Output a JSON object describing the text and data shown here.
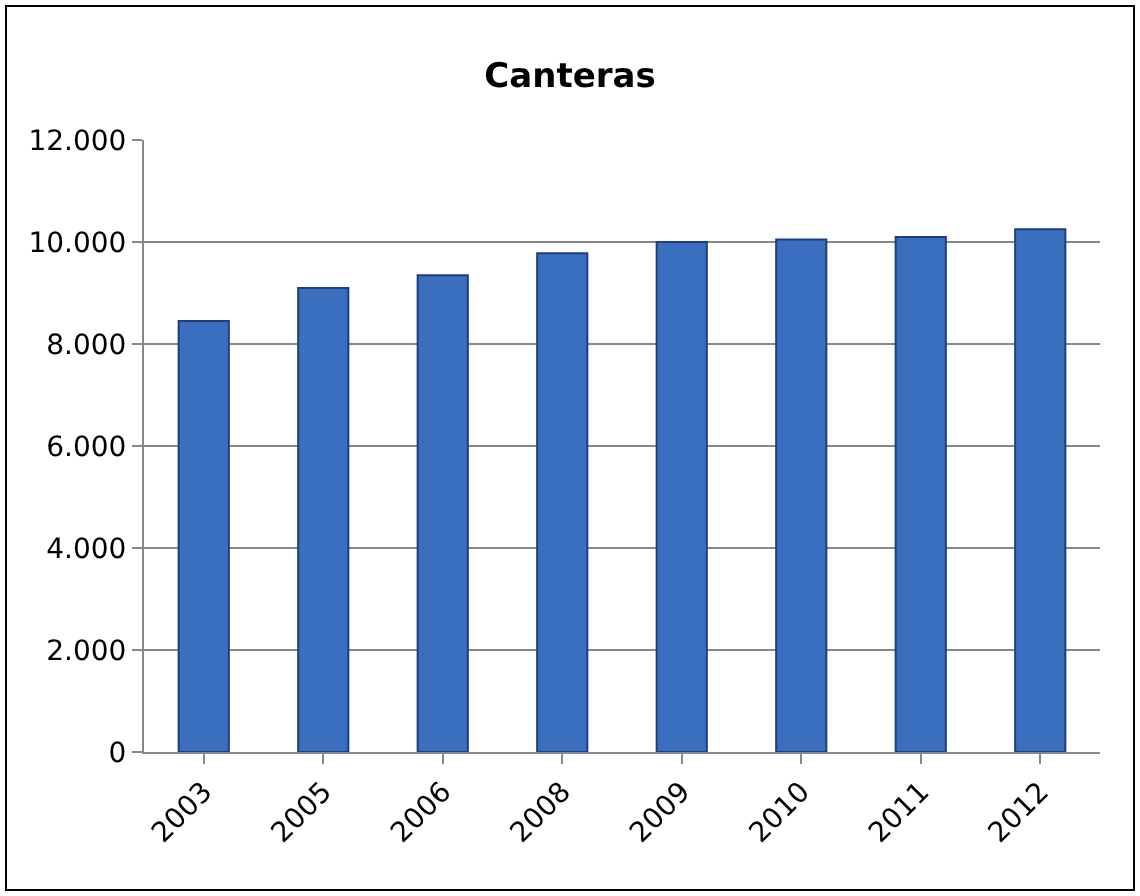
{
  "chart_data": {
    "type": "bar",
    "title": "Canteras",
    "categories": [
      "2003",
      "2005",
      "2006",
      "2008",
      "2009",
      "2010",
      "2011",
      "2012"
    ],
    "values": [
      8450,
      9100,
      9350,
      9780,
      10000,
      10050,
      10100,
      10250
    ],
    "color": "#3a6fbf",
    "ylim": [
      0,
      12000
    ],
    "yticks": [
      {
        "value": 0,
        "label": "0"
      },
      {
        "value": 2000,
        "label": "2.000"
      },
      {
        "value": 4000,
        "label": "4.000"
      },
      {
        "value": 6000,
        "label": "6.000"
      },
      {
        "value": 8000,
        "label": "8.000"
      },
      {
        "value": 10000,
        "label": "10.000"
      },
      {
        "value": 12000,
        "label": "12.000"
      }
    ],
    "grid": "y"
  }
}
